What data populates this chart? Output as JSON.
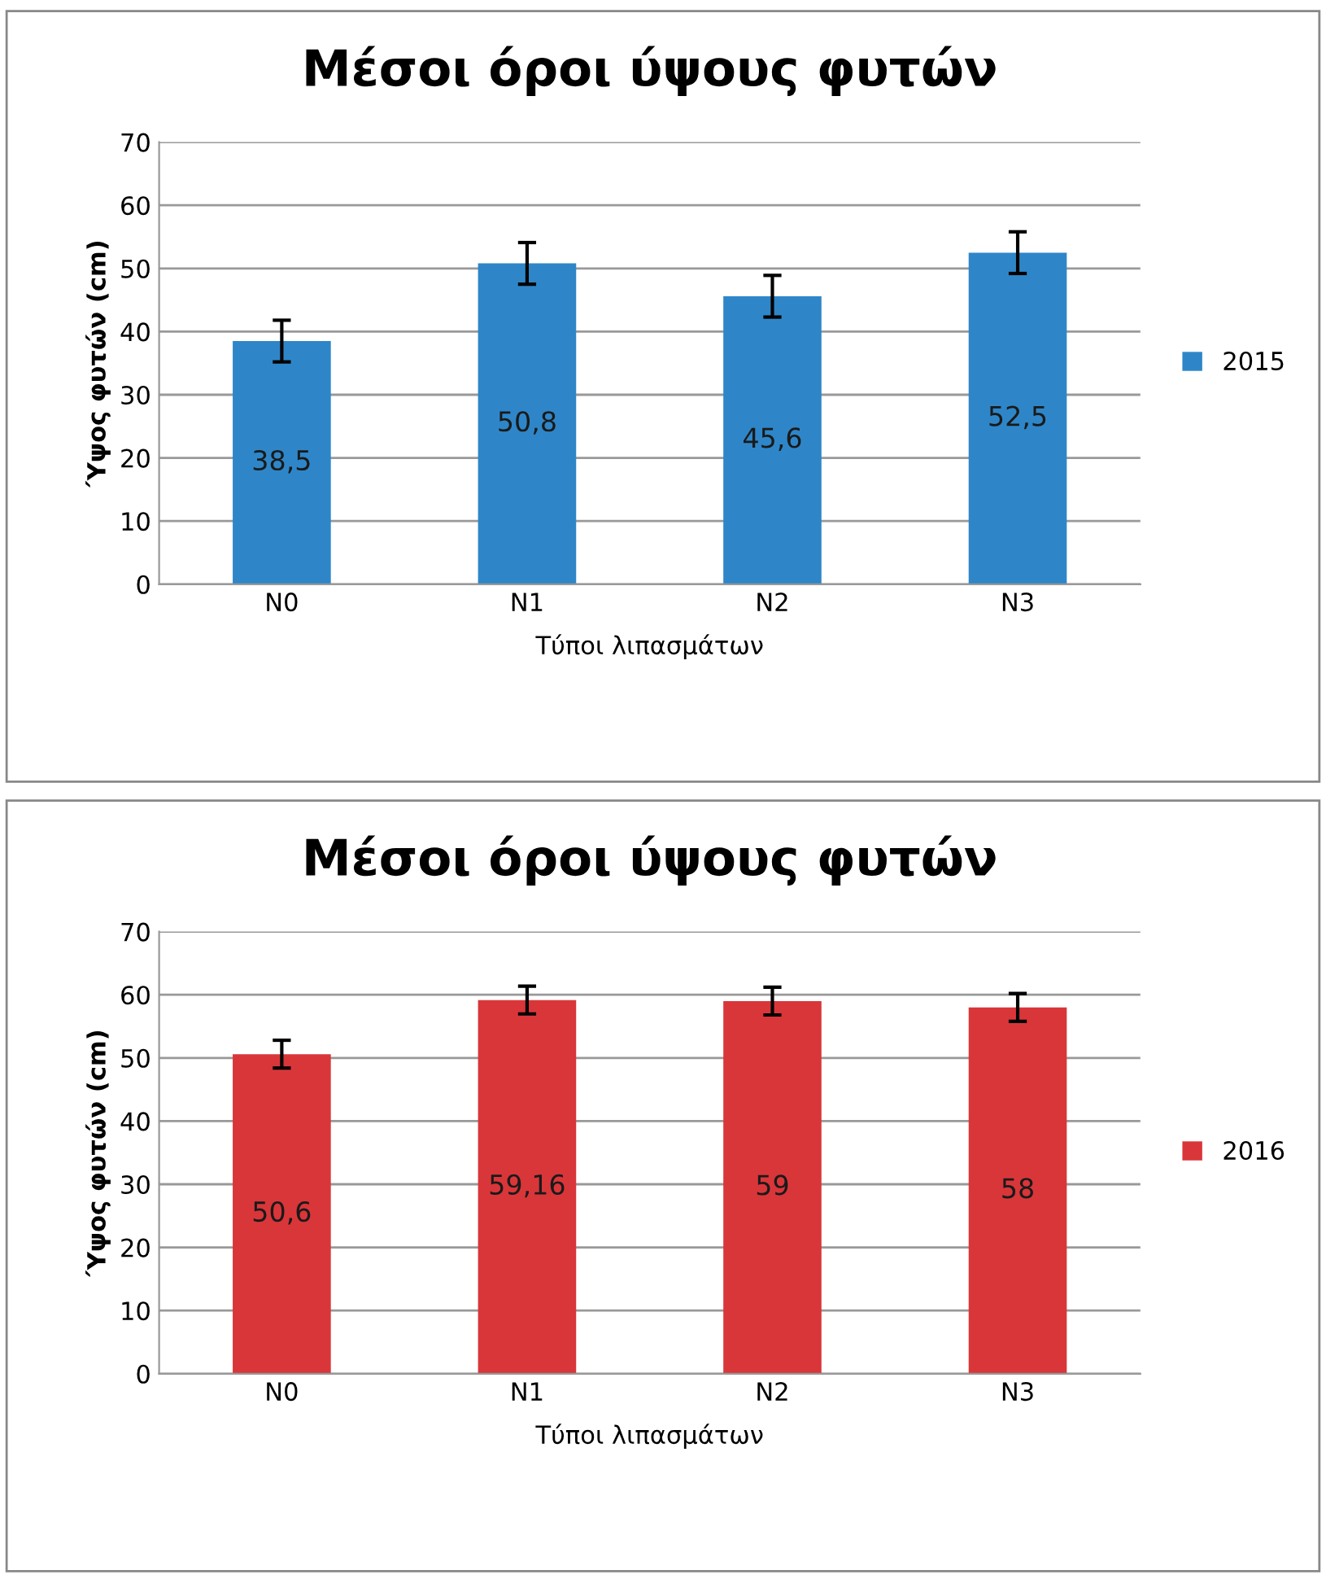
{
  "chart_data": [
    {
      "type": "bar",
      "title": "Μέσοι όροι ύψους φυτών",
      "xlabel": "Τύποι λιπασμάτων",
      "ylabel": "Ύψος φυτών (cm)",
      "categories": [
        "N0",
        "N1",
        "N2",
        "N3"
      ],
      "series": [
        {
          "name": "2015",
          "color": "#2e86c8",
          "values": [
            38.5,
            50.8,
            45.6,
            52.5
          ],
          "errors": [
            3.3,
            3.3,
            3.3,
            3.3
          ],
          "value_labels": [
            "38,5",
            "50,8",
            "45,6",
            "52,5"
          ]
        }
      ],
      "ylim": [
        0,
        70
      ],
      "yticks": [
        0,
        10,
        20,
        30,
        40,
        50,
        60,
        70
      ],
      "grid": "y",
      "legend": "right"
    },
    {
      "type": "bar",
      "title": "Μέσοι όροι ύψους φυτών",
      "xlabel": "Τύποι λιπασμάτων",
      "ylabel": "Ύψος φυτών (cm)",
      "categories": [
        "N0",
        "N1",
        "N2",
        "N3"
      ],
      "series": [
        {
          "name": "2016",
          "color": "#d9363a",
          "values": [
            50.6,
            59.16,
            59,
            58
          ],
          "errors": [
            2.2,
            2.2,
            2.2,
            2.2
          ],
          "value_labels": [
            "50,6",
            "59,16",
            "59",
            "58"
          ]
        }
      ],
      "ylim": [
        0,
        70
      ],
      "yticks": [
        0,
        10,
        20,
        30,
        40,
        50,
        60,
        70
      ],
      "grid": "y",
      "legend": "right"
    }
  ]
}
